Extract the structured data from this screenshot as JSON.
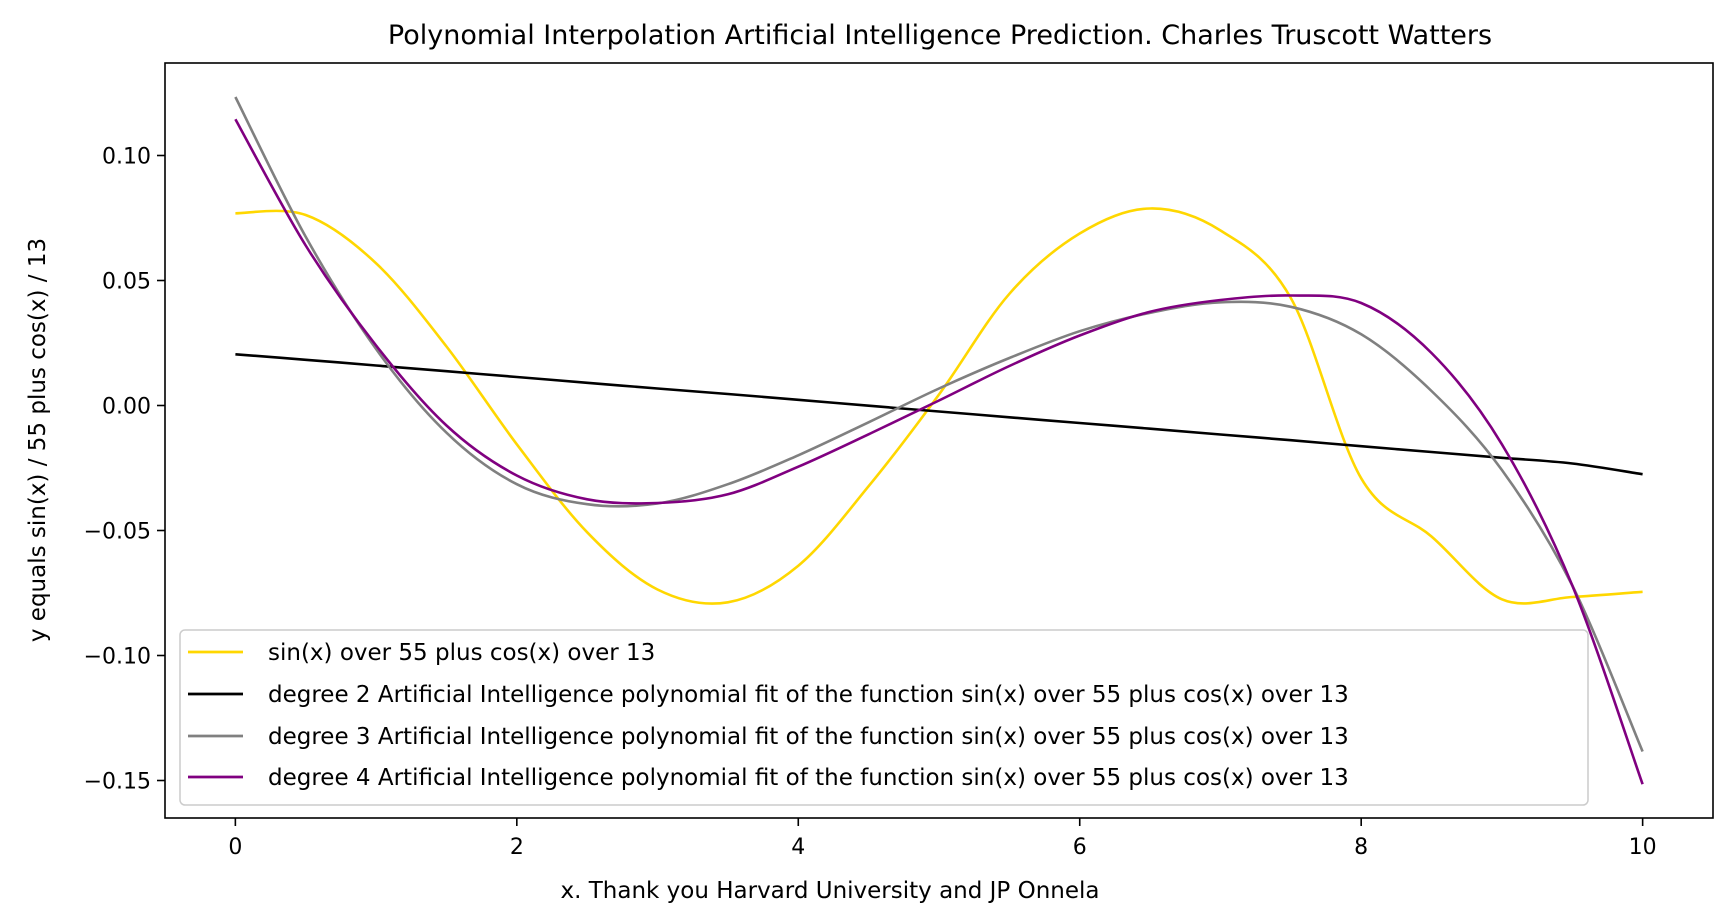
{
  "chart_data": {
    "type": "line",
    "title": "Polynomial Interpolation Artificial Intelligence Prediction. Charles Truscott Watters",
    "xlabel": "x. Thank you Harvard University and JP Onnela",
    "ylabel": "y equals sin(x) / 55 plus cos(x) / 13",
    "xlim": [
      -0.5,
      10.5
    ],
    "ylim": [
      -0.165,
      0.137
    ],
    "x_ticks": [
      0,
      2,
      4,
      6,
      8,
      10
    ],
    "x_tick_labels": [
      "0",
      "2",
      "4",
      "6",
      "8",
      "10"
    ],
    "y_ticks": [
      0.1,
      0.05,
      0.0,
      -0.05,
      -0.1,
      -0.15
    ],
    "y_tick_labels": [
      "0.10",
      "0.05",
      "0.00",
      "−0.05",
      "−0.10",
      "−0.15"
    ],
    "grid": false,
    "legend_position": "lower-left",
    "x": [
      0.0,
      0.5,
      1.0,
      1.5,
      2.0,
      2.5,
      3.0,
      3.5,
      4.0,
      4.5,
      5.0,
      5.5,
      6.0,
      6.5,
      7.0,
      7.5,
      8.0,
      8.5,
      9.0,
      9.5,
      10.0
    ],
    "series": [
      {
        "name": "sin(x) over 55 plus cos(x) over 13",
        "color": "#FFD700",
        "values": [
          0.0769,
          0.0762,
          0.0569,
          0.0236,
          -0.0155,
          -0.0507,
          -0.0736,
          -0.0787,
          -0.0641,
          -0.0323,
          0.0044,
          0.0447,
          0.0688,
          0.0788,
          0.07,
          0.043,
          -0.0291,
          -0.0524,
          -0.0775,
          -0.0766,
          -0.0745
        ]
      },
      {
        "name": "degree 2 Artificial Intelligence polynomial fit of the function sin(x) over 55 plus cos(x) over 13",
        "color": "#000000",
        "values": [
          0.0205,
          0.0183,
          0.016,
          0.0137,
          0.0114,
          0.0091,
          0.0068,
          0.0046,
          0.0023,
          -0.0001,
          -0.0024,
          -0.0047,
          -0.007,
          -0.0093,
          -0.0116,
          -0.0139,
          -0.0163,
          -0.0186,
          -0.0209,
          -0.0232,
          -0.0275
        ]
      },
      {
        "name": "degree 3 Artificial Intelligence polynomial fit of the function sin(x) over 55 plus cos(x) over 13",
        "color": "#808080",
        "values": [
          0.1234,
          0.0675,
          0.0226,
          -0.0109,
          -0.0315,
          -0.0395,
          -0.0392,
          -0.0315,
          -0.0199,
          -0.0067,
          0.0068,
          0.019,
          0.0297,
          0.0371,
          0.0413,
          0.0395,
          0.0285,
          0.0058,
          -0.0258,
          -0.072,
          -0.1384
        ]
      },
      {
        "name": "degree 4 Artificial Intelligence polynomial fit of the function sin(x) over 55 plus cos(x) over 13",
        "color": "#800080",
        "values": [
          0.1145,
          0.064,
          0.024,
          -0.008,
          -0.028,
          -0.0375,
          -0.039,
          -0.0355,
          -0.0245,
          -0.0115,
          0.002,
          0.0158,
          0.028,
          0.0375,
          0.0422,
          0.044,
          0.041,
          0.021,
          -0.0155,
          -0.072,
          -0.1515
        ]
      }
    ]
  }
}
